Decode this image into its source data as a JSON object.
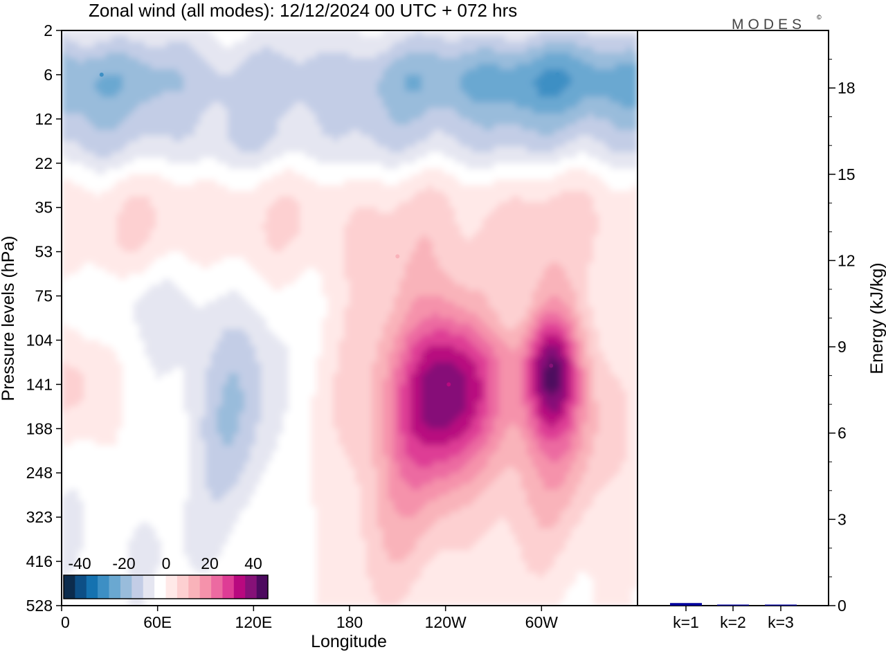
{
  "chart_data": [
    {
      "type": "heatmap",
      "title": "Zonal wind (all modes):  12/12/2024  00 UTC  + 072 hrs",
      "xlabel": "Longitude",
      "ylabel": "Pressure levels (hPa)",
      "x_ticks": [
        "0",
        "60E",
        "120E",
        "180",
        "120W",
        "60W"
      ],
      "y_ticks": [
        "2",
        "6",
        "12",
        "22",
        "35",
        "53",
        "75",
        "104",
        "141",
        "188",
        "248",
        "323",
        "416",
        "528"
      ],
      "colorbar": {
        "tick_labels": [
          "-40",
          "-20",
          "0",
          "20",
          "40"
        ],
        "range": [
          -50,
          50
        ],
        "colors": [
          "#0c2c4d",
          "#0d4f86",
          "#1572b0",
          "#3d8fc4",
          "#6aa8d1",
          "#99bcdb",
          "#c3cde6",
          "#e5e6f1",
          "#ffffff",
          "#ffe9e8",
          "#fdd0d1",
          "#f9b3ba",
          "#f592ab",
          "#ec6aa1",
          "#de3c95",
          "#b8097f",
          "#861178",
          "#4d0a5f"
        ]
      },
      "cores": [
        {
          "lon": 242,
          "p": 141,
          "value": 38
        },
        {
          "lon": 306,
          "p": 124,
          "value": 40
        },
        {
          "lon": 105,
          "p": 150,
          "value": -22
        },
        {
          "lon": 25,
          "p": 6,
          "value": -28
        },
        {
          "lon": 310,
          "p": 6,
          "value": -30
        },
        {
          "lon": 210,
          "p": 55,
          "value": 14
        }
      ]
    },
    {
      "type": "bar",
      "categories": [
        "k=1",
        "k=2",
        "k=3"
      ],
      "values": [
        0.09,
        0.01,
        0.01
      ],
      "ylabel": "Energy (kJ/kg)",
      "y_ticks": [
        "0",
        "3",
        "6",
        "9",
        "12",
        "15",
        "18"
      ],
      "ylim": [
        0,
        20
      ],
      "bar_color": "#00009b"
    }
  ],
  "branding": {
    "text": "MODES",
    "symbol": "©"
  }
}
